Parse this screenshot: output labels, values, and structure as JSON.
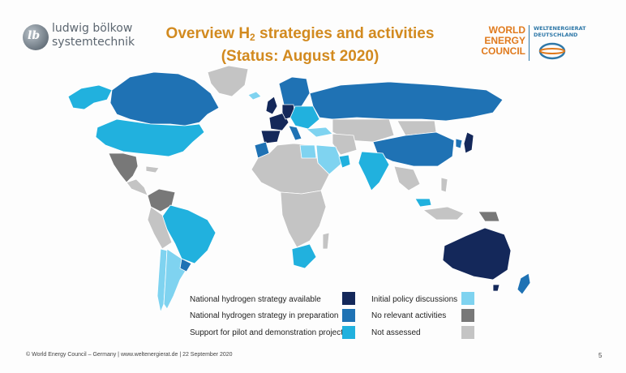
{
  "header": {
    "logo_left_line1": "ludwig bölkow",
    "logo_left_line2": "systemtechnik",
    "title_pre": "Overview H",
    "title_sub": "2",
    "title_post": " strategies and activities",
    "title_line2": "(Status: August 2020)",
    "wec_line1": "WORLD",
    "wec_line2": "ENERGY",
    "wec_line3": "COUNCIL",
    "weg_line1": "WELTENERGIERAT",
    "weg_line2": "DEUTSCHLAND"
  },
  "colors": {
    "strategy_available": "#14285a",
    "strategy_preparation": "#1f72b4",
    "pilot_projects": "#21b1de",
    "policy_discussions": "#7fd3f0",
    "no_activities": "#787878",
    "not_assessed": "#c4c4c4"
  },
  "legend": [
    {
      "label": "National hydrogen strategy available",
      "color": "#14285a"
    },
    {
      "label": "National hydrogen strategy in preparation",
      "color": "#1f72b4"
    },
    {
      "label": "Support for pilot and demonstration projects",
      "color": "#21b1de"
    },
    {
      "label": "Initial policy discussions",
      "color": "#7fd3f0"
    },
    {
      "label": "No relevant activities",
      "color": "#787878"
    },
    {
      "label": "Not assessed",
      "color": "#c4c4c4"
    }
  ],
  "footer": {
    "text": "© World Energy Council – Germany  |  www.weltenergierat.de | 22 September 2020",
    "page": "5"
  }
}
